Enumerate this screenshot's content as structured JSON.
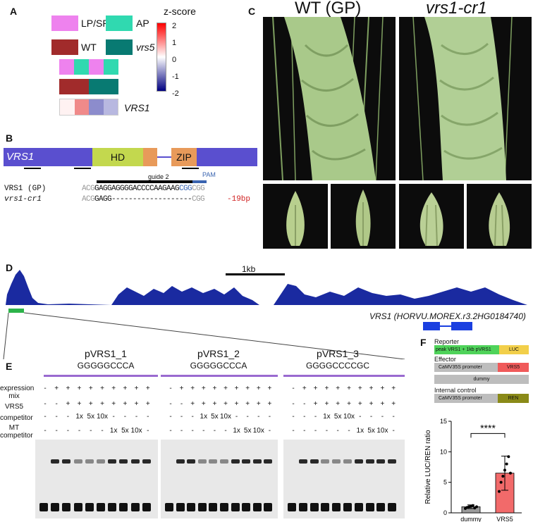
{
  "panels": {
    "a": "A",
    "b": "B",
    "c": "C",
    "d": "D",
    "e": "E",
    "f": "F"
  },
  "panel_a": {
    "legend": [
      {
        "label": "LP/SP",
        "color": "#ee82ee"
      },
      {
        "label": "AP",
        "color": "#30d9b0"
      },
      {
        "label": "WT",
        "color": "#a12b2b"
      },
      {
        "label": "vrs5",
        "color": "#087a72"
      }
    ],
    "colorbar_title": "z-score",
    "colorbar_ticks": [
      "2",
      "1",
      "0",
      "-1",
      "-2"
    ],
    "gene_label": "VRS1",
    "row1": [
      "#ee82ee",
      "#30d9b0",
      "#ee82ee",
      "#30d9b0"
    ],
    "row2": [
      "#a12b2b",
      "#a12b2b",
      "#087a72",
      "#087a72"
    ],
    "row3": [
      "#fff2f2",
      "#f08a8a",
      "#8c8ccc",
      "#b8b8e0"
    ]
  },
  "panel_b": {
    "gene": "VRS1",
    "hd": "HD",
    "zip": "ZIP",
    "guide": "guide 2",
    "pam": "PAM",
    "row1_label": "VRS1 (GP)",
    "row2_label": "vrs1-cr1",
    "row1_seq": {
      "pre": "ACG",
      "main": "GAGGAGGGGACCCCAAGAAG",
      "pam": "CGG",
      "post": "CGG"
    },
    "row2_seq": {
      "pre": "ACG",
      "main": "GAGG-------------------",
      "post": "CGG"
    },
    "deletion": "-19bp"
  },
  "panel_c": {
    "left_title": "WT (GP)",
    "right_title": "vrs1-cr1"
  },
  "panel_d": {
    "scale": "1kb",
    "gene_label": "VRS1 (HORVU.MOREX.r3.2HG0184740)"
  },
  "panel_e": {
    "probes": [
      {
        "name": "pVRS1_1",
        "seq": "GGGGGCCCA"
      },
      {
        "name": "pVRS1_2",
        "seq": "GGGGGCCCA"
      },
      {
        "name": "pVRS1_3",
        "seq": "GGGGCCCCGC"
      }
    ],
    "row_labels": [
      "expression mix",
      "VRS5",
      "competitor",
      "MT competitor"
    ],
    "lane_expression": [
      "-",
      "+",
      "+",
      "+",
      "+",
      "+",
      "+",
      "+",
      "+",
      "+"
    ],
    "lane_vrs5": [
      "-",
      "-",
      "+",
      "+",
      "+",
      "+",
      "+",
      "+",
      "+",
      "+"
    ],
    "lane_competitor": [
      "-",
      "-",
      "-",
      "1x",
      "5x",
      "10x",
      "-",
      "-",
      "-",
      "-"
    ],
    "lane_mt": [
      "-",
      "-",
      "-",
      "-",
      "-",
      "-",
      "1x",
      "5x",
      "10x",
      "-"
    ]
  },
  "panel_f": {
    "reporter_label": "Reporter",
    "reporter_promoter": "peak VRS1 + 1kb pVRS1",
    "reporter_gene": "LUC",
    "effector_label": "Effector",
    "effector_promoter": "CaMV35S promoter",
    "effector_gene": "VRS5",
    "dummy": "dummy",
    "control_label": "Internal control",
    "control_promoter": "CaMV35S promoter",
    "control_gene": "REN",
    "significance": "****",
    "ylabel": "Relative LUC/REN ratio"
  },
  "chart_data": {
    "type": "bar",
    "categories": [
      "dummy",
      "VRS5"
    ],
    "values": [
      1.0,
      6.5
    ],
    "errors": [
      0.3,
      2.8
    ],
    "points": [
      [
        0.7,
        0.9,
        1.0,
        1.1,
        1.2,
        0.8,
        1.0
      ],
      [
        3.5,
        5.0,
        6.0,
        7.0,
        8.0,
        9.2,
        6.5
      ]
    ],
    "ylabel": "Relative LUC/REN ratio",
    "ylim": [
      0,
      15
    ],
    "yticks": [
      0,
      5,
      10,
      15
    ],
    "colors": [
      "#9a9a9a",
      "#f26a6a"
    ]
  }
}
